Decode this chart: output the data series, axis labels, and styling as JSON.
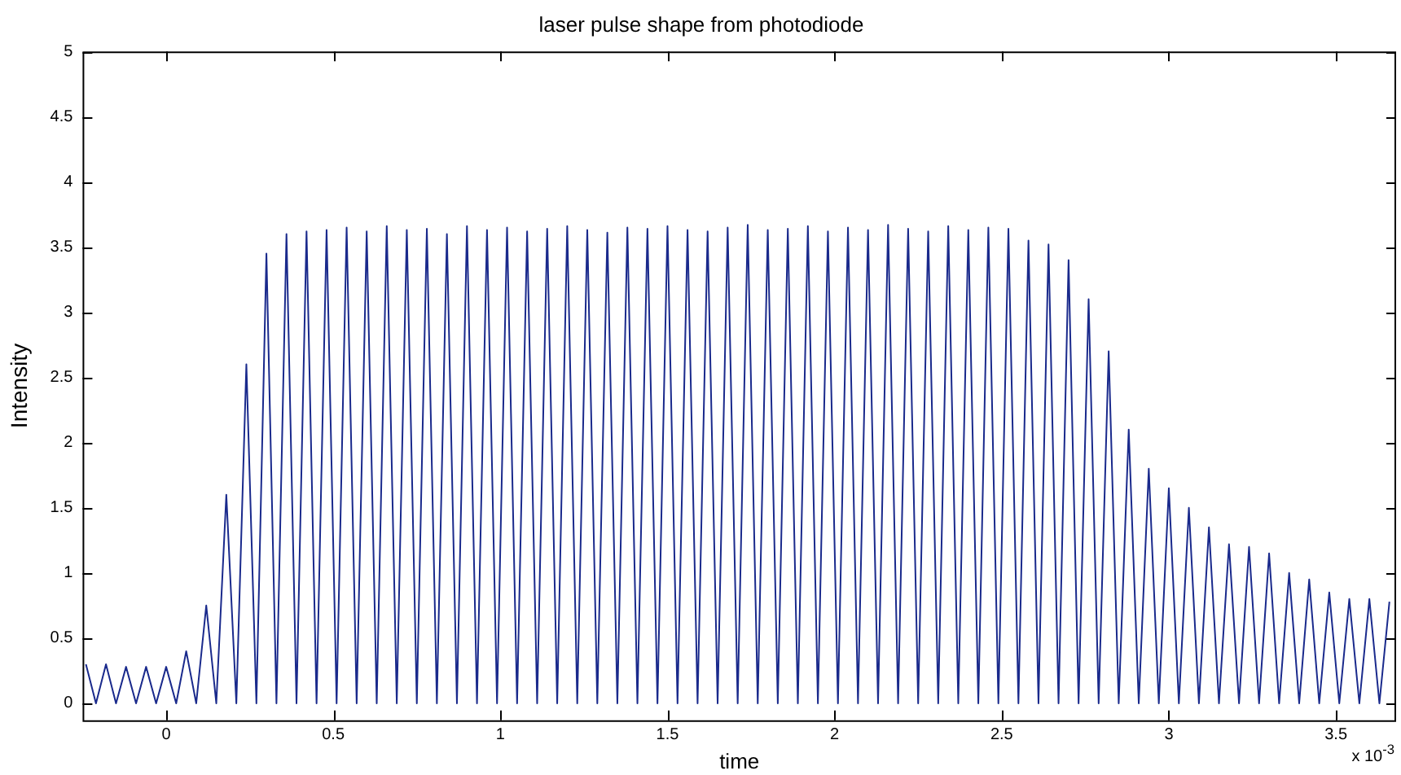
{
  "chart_data": {
    "type": "line",
    "title": "laser pulse shape from photodiode",
    "xlabel": "time",
    "ylabel": "Intensity",
    "annotations": [
      "x 10$^{-3}$"
    ],
    "x": [
      -0.24,
      -0.21,
      -0.18,
      -0.15,
      -0.12,
      -0.09,
      -0.06,
      -0.03,
      0,
      0.03,
      0.06,
      0.09,
      0.12,
      0.15,
      0.18,
      0.21,
      0.24,
      0.27,
      0.3,
      0.33,
      0.36,
      0.39,
      0.42,
      0.45,
      0.48,
      0.51,
      0.54,
      0.57,
      0.6,
      0.63,
      0.66,
      0.69,
      0.72,
      0.75,
      0.78,
      0.81,
      0.84,
      0.87,
      0.9,
      0.93,
      0.96,
      0.99,
      1.02,
      1.05,
      1.08,
      1.11,
      1.14,
      1.17,
      1.2,
      1.23,
      1.26,
      1.29,
      1.32,
      1.35,
      1.38,
      1.41,
      1.44,
      1.47,
      1.5,
      1.53,
      1.56,
      1.59,
      1.62,
      1.65,
      1.68,
      1.71,
      1.74,
      1.77,
      1.8,
      1.83,
      1.86,
      1.89,
      1.92,
      1.95,
      1.98,
      2.01,
      2.04,
      2.07,
      2.1,
      2.13,
      2.16,
      2.19,
      2.22,
      2.25,
      2.28,
      2.31,
      2.34,
      2.37,
      2.4,
      2.43,
      2.46,
      2.49,
      2.52,
      2.55,
      2.58,
      2.61,
      2.64,
      2.67,
      2.7,
      2.73,
      2.76,
      2.79,
      2.82,
      2.85,
      2.88,
      2.91,
      2.94,
      2.97,
      3.0,
      3.03,
      3.06,
      3.09,
      3.12,
      3.15,
      3.18,
      3.21,
      3.24,
      3.27,
      3.3,
      3.33,
      3.36,
      3.39,
      3.42,
      3.45,
      3.48,
      3.51,
      3.54,
      3.57,
      3.6,
      3.63,
      3.66
    ],
    "series": [
      {
        "color": "#1a2a8c",
        "values": [
          0.3,
          0,
          0.3,
          0,
          0.28,
          0,
          0.28,
          0,
          0.28,
          0,
          0.4,
          0,
          0.75,
          0,
          1.6,
          0,
          2.6,
          0,
          3.45,
          0,
          3.6,
          0,
          3.62,
          0,
          3.63,
          0,
          3.65,
          0,
          3.62,
          0,
          3.66,
          0,
          3.63,
          0,
          3.64,
          0,
          3.6,
          0,
          3.66,
          0,
          3.63,
          0,
          3.65,
          0,
          3.62,
          0,
          3.64,
          0,
          3.66,
          0,
          3.63,
          0,
          3.61,
          0,
          3.65,
          0,
          3.64,
          0,
          3.66,
          0,
          3.63,
          0,
          3.62,
          0,
          3.65,
          0,
          3.67,
          0,
          3.63,
          0,
          3.64,
          0,
          3.66,
          0,
          3.62,
          0,
          3.65,
          0,
          3.63,
          0,
          3.67,
          0,
          3.64,
          0,
          3.62,
          0,
          3.66,
          0,
          3.63,
          0,
          3.65,
          0,
          3.64,
          0,
          3.55,
          0,
          3.52,
          0,
          3.4,
          0,
          3.1,
          0,
          2.7,
          0,
          2.1,
          0,
          1.8,
          0,
          1.65,
          0,
          1.5,
          0,
          1.35,
          0,
          1.22,
          0,
          1.2,
          0,
          1.15,
          0,
          1.0,
          0,
          0.95,
          0,
          0.85,
          0,
          0.8,
          0,
          0.8,
          0,
          0.78
        ]
      }
    ],
    "xlim": [
      -0.25,
      3.68
    ],
    "xticks": [
      0,
      0.5,
      1,
      1.5,
      2,
      2.5,
      3,
      3.5
    ],
    "ylim": [
      -0.13,
      5
    ],
    "yticks": [
      0,
      0.5,
      1,
      1.5,
      2,
      2.5,
      3,
      3.5,
      4,
      4.5,
      5
    ],
    "marker": "none",
    "line_style": "solid"
  }
}
